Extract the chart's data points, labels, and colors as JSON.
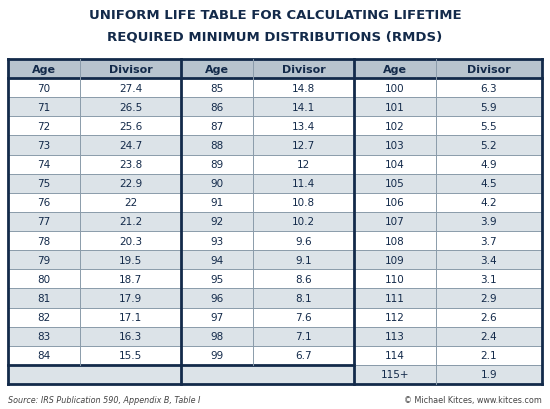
{
  "title_line1": "UNIFORM LIFE TABLE FOR CALCULATING LIFETIME",
  "title_line2": "REQUIRED MINIMUM DISTRIBUTIONS (RMDS)",
  "title_color": "#132a4a",
  "title_bg": "#ffffff",
  "bg_color": "#ffffff",
  "outer_border_color": "#132a4a",
  "header_bg": "#b8c4ce",
  "header_text_color": "#132a4a",
  "row_bg_light": "#ffffff",
  "row_bg_dark": "#dce3e8",
  "cell_text_color": "#132a4a",
  "thick_border_color": "#132a4a",
  "thin_border_color": "#8a9baa",
  "source_text": "Source: IRS Publication 590, Appendix B, Table I",
  "copyright_text": "© Michael Kitces, www.kitces.com",
  "col1_ages": [
    70,
    71,
    72,
    73,
    74,
    75,
    76,
    77,
    78,
    79,
    80,
    81,
    82,
    83,
    84
  ],
  "col1_divs": [
    "27.4",
    "26.5",
    "25.6",
    "24.7",
    "23.8",
    "22.9",
    "22",
    "21.2",
    "20.3",
    "19.5",
    "18.7",
    "17.9",
    "17.1",
    "16.3",
    "15.5"
  ],
  "col2_ages": [
    85,
    86,
    87,
    88,
    89,
    90,
    91,
    92,
    93,
    94,
    95,
    96,
    97,
    98,
    99
  ],
  "col2_divs": [
    "14.8",
    "14.1",
    "13.4",
    "12.7",
    "12",
    "11.4",
    "10.8",
    "10.2",
    "9.6",
    "9.1",
    "8.6",
    "8.1",
    "7.6",
    "7.1",
    "6.7"
  ],
  "col3_ages": [
    100,
    101,
    102,
    103,
    104,
    105,
    106,
    107,
    108,
    109,
    110,
    111,
    112,
    113,
    114,
    "115+"
  ],
  "col3_divs": [
    "6.3",
    "5.9",
    "5.5",
    "5.2",
    "4.9",
    "4.5",
    "4.2",
    "3.9",
    "3.7",
    "3.4",
    "3.1",
    "2.9",
    "2.6",
    "2.4",
    "2.1",
    "1.9"
  ]
}
